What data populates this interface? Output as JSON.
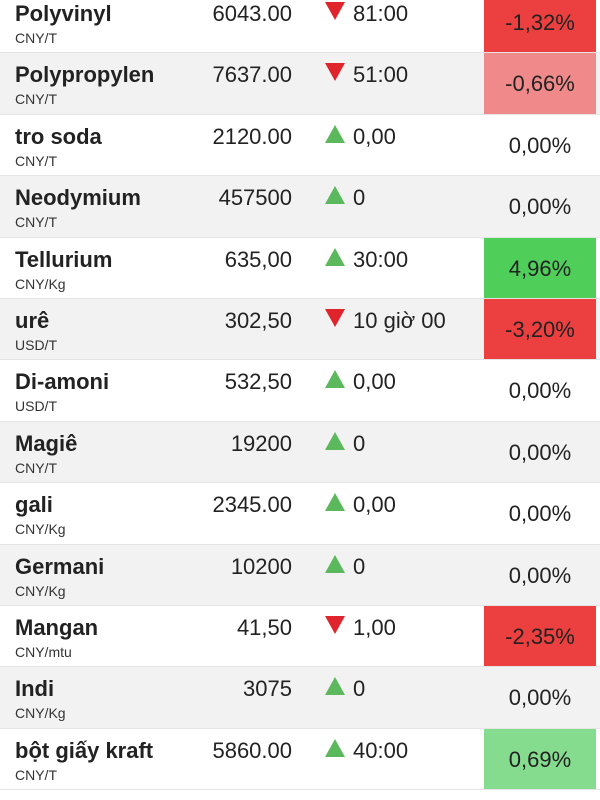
{
  "rows": [
    {
      "name": "Polyvinyl",
      "unit": "CNY/T",
      "price": "6043.00",
      "dir": "down",
      "change": "81:00",
      "pct": "-1,32%",
      "pct_style": "strong-red"
    },
    {
      "name": "Polypropylen",
      "unit": "CNY/T",
      "price": "7637.00",
      "dir": "down",
      "change": "51:00",
      "pct": "-0,66%",
      "pct_style": "light-red"
    },
    {
      "name": "tro soda",
      "unit": "CNY/T",
      "price": "2120.00",
      "dir": "up",
      "change": "0,00",
      "pct": "0,00%",
      "pct_style": ""
    },
    {
      "name": "Neodymium",
      "unit": "CNY/T",
      "price": "457500",
      "dir": "up",
      "change": "0",
      "pct": "0,00%",
      "pct_style": ""
    },
    {
      "name": "Tellurium",
      "unit": "CNY/Kg",
      "price": "635,00",
      "dir": "up",
      "change": "30:00",
      "pct": "4,96%",
      "pct_style": "strong-green"
    },
    {
      "name": "urê",
      "unit": "USD/T",
      "price": "302,50",
      "dir": "down",
      "change": "10 giờ 00",
      "pct": "-3,20%",
      "pct_style": "strong-red"
    },
    {
      "name": "Di-amoni",
      "unit": "USD/T",
      "price": "532,50",
      "dir": "up",
      "change": "0,00",
      "pct": "0,00%",
      "pct_style": ""
    },
    {
      "name": "Magiê",
      "unit": "CNY/T",
      "price": "19200",
      "dir": "up",
      "change": "0",
      "pct": "0,00%",
      "pct_style": ""
    },
    {
      "name": "gali",
      "unit": "CNY/Kg",
      "price": "2345.00",
      "dir": "up",
      "change": "0,00",
      "pct": "0,00%",
      "pct_style": ""
    },
    {
      "name": "Germani",
      "unit": "CNY/Kg",
      "price": "10200",
      "dir": "up",
      "change": "0",
      "pct": "0,00%",
      "pct_style": ""
    },
    {
      "name": "Mangan",
      "unit": "CNY/mtu",
      "price": "41,50",
      "dir": "down",
      "change": "1,00",
      "pct": "-2,35%",
      "pct_style": "strong-red"
    },
    {
      "name": "Indi",
      "unit": "CNY/Kg",
      "price": "3075",
      "dir": "up",
      "change": "0",
      "pct": "0,00%",
      "pct_style": ""
    },
    {
      "name": "bột giấy kraft",
      "unit": "CNY/T",
      "price": "5860.00",
      "dir": "up",
      "change": "40:00",
      "pct": "0,69%",
      "pct_style": "light-green"
    }
  ],
  "colors": {
    "down_arrow": "#e0242c",
    "up_arrow": "#5cb85c",
    "strong_red": "#ec4040",
    "light_red": "#f08a8a",
    "strong_green": "#4fcf5a",
    "light_green": "#86dc8e"
  }
}
